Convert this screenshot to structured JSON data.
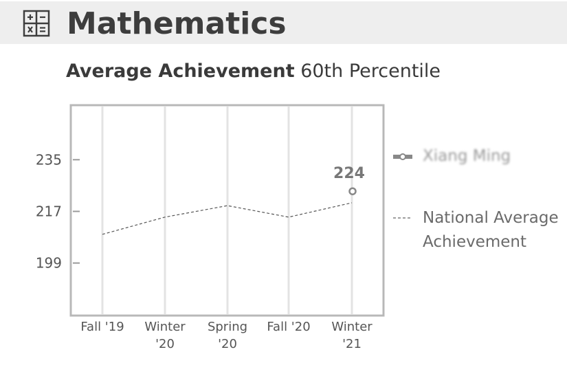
{
  "header": {
    "title": "Mathematics",
    "icon": "calculator-icon",
    "background": "#eeeeee"
  },
  "chart_title": {
    "bold": "Average Achievement",
    "rest": "60th Percentile"
  },
  "legend": {
    "student_label": "Xiang Ming",
    "national_label": "National Average Achievement"
  },
  "chart_data": {
    "type": "line",
    "categories": [
      "Fall '19",
      "Winter '20",
      "Spring '20",
      "Fall '20",
      "Winter '21"
    ],
    "category_lines": [
      [
        "Fall '19"
      ],
      [
        "Winter",
        "'20"
      ],
      [
        "Spring",
        "'20"
      ],
      [
        "Fall '20"
      ],
      [
        "Winter",
        "'21"
      ]
    ],
    "y_ticks": [
      199,
      217,
      235
    ],
    "ylim": [
      180.7,
      254
    ],
    "grid": "vertical",
    "legend_position": "right",
    "series": [
      {
        "name": "Xiang Ming",
        "style": "marker",
        "color": "#888888",
        "values": [
          null,
          null,
          null,
          null,
          224
        ],
        "data_label": "224"
      },
      {
        "name": "National Average Achievement",
        "style": "dashed",
        "color": "#555555",
        "values": [
          209,
          215,
          219,
          215,
          220
        ]
      }
    ]
  }
}
